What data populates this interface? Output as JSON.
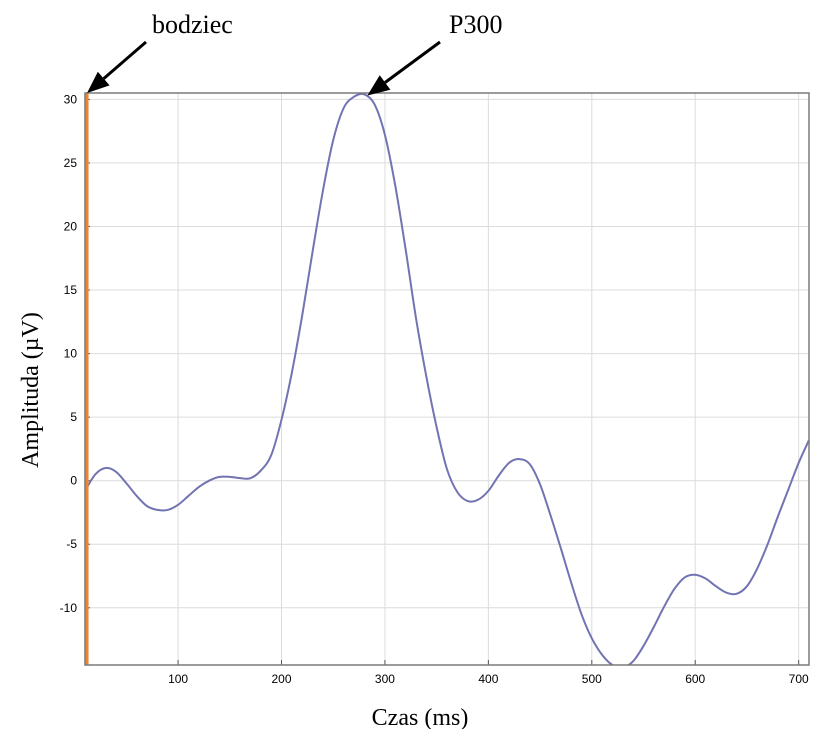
{
  "chart_data": {
    "type": "line",
    "xlabel": "Czas (ms)",
    "ylabel": "Amplituda (µV)",
    "xlim": [
      10,
      710
    ],
    "ylim": [
      -14.5,
      30.5
    ],
    "xticks": [
      100,
      200,
      300,
      400,
      500,
      600,
      700
    ],
    "yticks": [
      30,
      25,
      20,
      15,
      10,
      5,
      0,
      -5,
      -10
    ],
    "grid": true,
    "stimulus_marker": {
      "x": 12,
      "color": "#e8873a",
      "label": "bodziec"
    },
    "peak_annotation": {
      "label": "P300",
      "x": 283,
      "y": 30.3
    },
    "series": [
      {
        "color": "#7273b2",
        "x": [
          10,
          20,
          30,
          40,
          50,
          60,
          70,
          80,
          90,
          100,
          110,
          120,
          130,
          140,
          150,
          160,
          170,
          180,
          190,
          200,
          210,
          220,
          230,
          240,
          250,
          260,
          270,
          280,
          290,
          300,
          310,
          320,
          330,
          340,
          350,
          360,
          370,
          380,
          390,
          400,
          410,
          420,
          430,
          440,
          450,
          460,
          470,
          480,
          490,
          500,
          510,
          520,
          530,
          540,
          550,
          560,
          570,
          580,
          590,
          600,
          610,
          620,
          630,
          640,
          650,
          660,
          670,
          680,
          690,
          700,
          710
        ],
        "y": [
          -0.8,
          0.5,
          1.0,
          0.7,
          -0.2,
          -1.2,
          -2.0,
          -2.3,
          -2.3,
          -1.9,
          -1.2,
          -0.5,
          0.0,
          0.3,
          0.3,
          0.2,
          0.2,
          0.8,
          2.0,
          4.8,
          8.5,
          13.0,
          18.0,
          22.8,
          26.8,
          29.3,
          30.2,
          30.4,
          29.6,
          27.2,
          23.2,
          18.2,
          12.8,
          8.2,
          4.2,
          0.9,
          -0.9,
          -1.6,
          -1.5,
          -0.8,
          0.4,
          1.4,
          1.7,
          1.3,
          -0.3,
          -2.7,
          -5.3,
          -8.0,
          -10.5,
          -12.4,
          -13.7,
          -14.5,
          -14.7,
          -14.2,
          -13.0,
          -11.5,
          -9.9,
          -8.5,
          -7.6,
          -7.4,
          -7.7,
          -8.3,
          -8.8,
          -8.9,
          -8.3,
          -6.9,
          -5.0,
          -2.8,
          -0.7,
          1.4,
          3.2
        ]
      }
    ]
  }
}
